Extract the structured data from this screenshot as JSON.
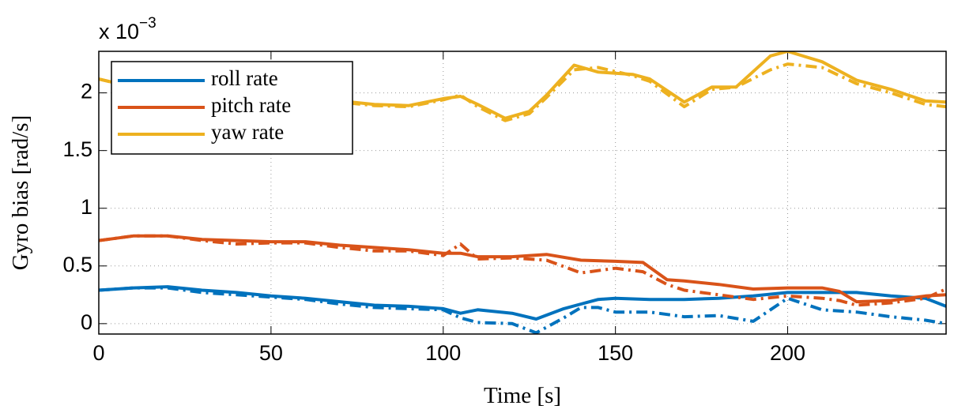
{
  "chart_data": {
    "type": "line",
    "multiplier": {
      "base": "x 10",
      "exponent": "−3"
    },
    "xlabel": "Time [s]",
    "ylabel": "Gyro bias [rad/s]",
    "xlim": [
      0,
      246
    ],
    "ylim": [
      -0.09,
      2.36
    ],
    "xticks": [
      0,
      50,
      100,
      150,
      200
    ],
    "yticks": [
      0,
      0.5,
      1,
      1.5,
      2
    ],
    "grid": true,
    "legend_position": "upper-left",
    "series": [
      {
        "name": "roll rate",
        "color": "#0072bd",
        "style": "solid",
        "x": [
          0,
          10,
          20,
          30,
          40,
          50,
          60,
          70,
          80,
          90,
          100,
          105,
          110,
          120,
          127,
          135,
          140,
          145,
          150,
          160,
          170,
          180,
          190,
          200,
          210,
          220,
          230,
          240,
          246
        ],
        "values": [
          0.29,
          0.31,
          0.32,
          0.29,
          0.27,
          0.24,
          0.22,
          0.19,
          0.16,
          0.15,
          0.13,
          0.09,
          0.12,
          0.09,
          0.04,
          0.13,
          0.17,
          0.21,
          0.22,
          0.21,
          0.21,
          0.22,
          0.24,
          0.27,
          0.27,
          0.27,
          0.24,
          0.22,
          0.15
        ]
      },
      {
        "name": "pitch rate",
        "color": "#d95319",
        "style": "solid",
        "x": [
          0,
          10,
          20,
          30,
          40,
          50,
          60,
          70,
          80,
          90,
          100,
          105,
          110,
          120,
          130,
          140,
          150,
          158,
          165,
          170,
          180,
          190,
          200,
          210,
          215,
          220,
          230,
          240,
          246
        ],
        "values": [
          0.72,
          0.76,
          0.76,
          0.73,
          0.72,
          0.71,
          0.71,
          0.68,
          0.66,
          0.64,
          0.61,
          0.61,
          0.58,
          0.58,
          0.6,
          0.55,
          0.54,
          0.53,
          0.38,
          0.37,
          0.34,
          0.3,
          0.31,
          0.31,
          0.28,
          0.19,
          0.2,
          0.24,
          0.25
        ]
      },
      {
        "name": "yaw rate",
        "color": "#edb120",
        "style": "solid",
        "x": [
          0,
          10,
          20,
          30,
          40,
          50,
          60,
          70,
          80,
          90,
          100,
          105,
          110,
          118,
          125,
          130,
          138,
          145,
          155,
          160,
          170,
          178,
          185,
          195,
          200,
          210,
          220,
          230,
          240,
          246
        ],
        "values": [
          2.12,
          2.05,
          2.0,
          1.98,
          1.96,
          1.95,
          1.94,
          1.93,
          1.9,
          1.89,
          1.95,
          1.97,
          1.9,
          1.78,
          1.84,
          1.98,
          2.24,
          2.18,
          2.16,
          2.12,
          1.92,
          2.05,
          2.05,
          2.32,
          2.36,
          2.27,
          2.11,
          2.03,
          1.93,
          1.92
        ]
      },
      {
        "color": "#0072bd",
        "style": "dashdot",
        "x": [
          0,
          10,
          20,
          30,
          40,
          50,
          60,
          70,
          80,
          90,
          100,
          105,
          110,
          120,
          127,
          135,
          140,
          145,
          150,
          160,
          170,
          180,
          190,
          200,
          210,
          220,
          230,
          240,
          246
        ],
        "values": [
          0.29,
          0.31,
          0.31,
          0.27,
          0.25,
          0.23,
          0.21,
          0.17,
          0.14,
          0.13,
          0.12,
          0.05,
          0.01,
          0.0,
          -0.08,
          0.05,
          0.14,
          0.14,
          0.1,
          0.1,
          0.06,
          0.07,
          0.02,
          0.22,
          0.12,
          0.1,
          0.06,
          0.03,
          0.0
        ]
      },
      {
        "color": "#d95319",
        "style": "dashdot",
        "x": [
          0,
          10,
          20,
          30,
          40,
          50,
          60,
          70,
          80,
          90,
          100,
          105,
          110,
          120,
          130,
          140,
          150,
          158,
          165,
          170,
          180,
          190,
          200,
          210,
          215,
          220,
          230,
          240,
          246
        ],
        "values": [
          0.72,
          0.76,
          0.76,
          0.72,
          0.69,
          0.7,
          0.7,
          0.66,
          0.63,
          0.63,
          0.59,
          0.69,
          0.56,
          0.57,
          0.55,
          0.44,
          0.48,
          0.45,
          0.34,
          0.29,
          0.25,
          0.21,
          0.24,
          0.22,
          0.2,
          0.16,
          0.18,
          0.22,
          0.3
        ]
      },
      {
        "color": "#edb120",
        "style": "dashdot",
        "x": [
          0,
          10,
          20,
          30,
          40,
          50,
          60,
          70,
          80,
          90,
          100,
          105,
          110,
          118,
          125,
          130,
          138,
          145,
          155,
          160,
          170,
          178,
          185,
          195,
          200,
          210,
          220,
          230,
          240,
          246
        ],
        "values": [
          2.12,
          2.05,
          2.0,
          1.98,
          1.96,
          1.95,
          1.94,
          1.92,
          1.89,
          1.88,
          1.94,
          1.98,
          1.88,
          1.76,
          1.82,
          1.96,
          2.2,
          2.22,
          2.15,
          2.1,
          1.88,
          2.03,
          2.05,
          2.2,
          2.25,
          2.22,
          2.08,
          2.0,
          1.9,
          1.88
        ]
      }
    ]
  }
}
